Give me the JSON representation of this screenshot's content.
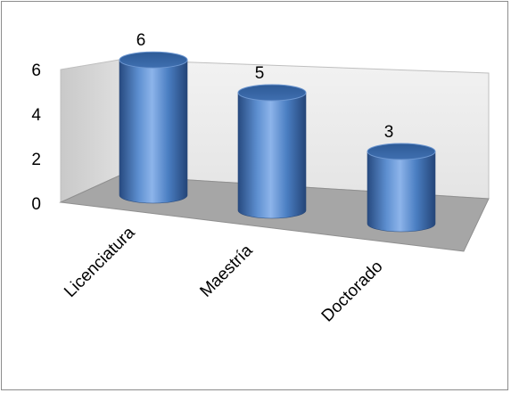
{
  "chart_data": {
    "type": "bar",
    "style": "3d-cylinder",
    "categories": [
      "Licenciatura",
      "Maestría",
      "Doctorado"
    ],
    "values": [
      6,
      5,
      3
    ],
    "data_labels": [
      "6",
      "5",
      "3"
    ],
    "y_ticks": [
      "0",
      "2",
      "4",
      "6"
    ],
    "ylim": [
      0,
      6
    ],
    "grid": false,
    "legend": "none",
    "title": "",
    "xlabel": "",
    "ylabel": "",
    "colors": {
      "bar_light": "#8fb5e8",
      "bar_mid": "#4f81bd",
      "bar_dark": "#2b4f87",
      "bar_top": "#2f5f9e",
      "back_wall": "#ececec",
      "side_wall": "#d4d4d4",
      "floor": "#a6a6a6"
    }
  }
}
